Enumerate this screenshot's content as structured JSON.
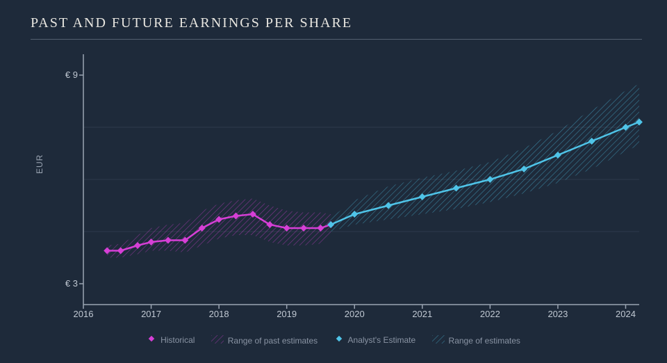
{
  "title": "PAST AND FUTURE EARNINGS PER SHARE",
  "ylabel": "EUR",
  "chart": {
    "type": "line-band",
    "background_color": "#1e2a3a",
    "grid_color": "#2f3b4c",
    "axis_color": "#9aa4b2",
    "title_color": "#e8e6e0",
    "tick_color": "#c0c8d2",
    "title_fontsize": 20,
    "tick_fontsize": 13,
    "ylabel_fontsize": 12,
    "xlim": [
      2016,
      2024.2
    ],
    "ylim": [
      2.4,
      9.6
    ],
    "xticks": [
      2016,
      2017,
      2018,
      2019,
      2020,
      2021,
      2022,
      2023,
      2024
    ],
    "yticks": [
      3,
      9
    ],
    "ytick_labels": [
      "€ 3",
      "€ 9"
    ],
    "line_width": 2.5,
    "marker_size": 5,
    "historical": {
      "color": "#d63fd6",
      "band_fill": "#d63fd6",
      "band_opacity": 0.25,
      "x": [
        2016.35,
        2016.55,
        2016.8,
        2017.0,
        2017.25,
        2017.5,
        2017.75,
        2018.0,
        2018.25,
        2018.5,
        2018.75,
        2019.0,
        2019.25,
        2019.5,
        2019.65
      ],
      "y": [
        3.95,
        3.95,
        4.1,
        4.2,
        4.25,
        4.25,
        4.6,
        4.85,
        4.95,
        5.0,
        4.7,
        4.6,
        4.6,
        4.6,
        4.7
      ],
      "ylo": [
        3.75,
        3.75,
        3.85,
        3.95,
        3.95,
        3.9,
        4.1,
        4.3,
        4.4,
        4.4,
        4.2,
        4.1,
        4.1,
        4.15,
        4.4
      ],
      "yhi": [
        4.1,
        4.15,
        4.4,
        4.6,
        4.7,
        4.75,
        5.1,
        5.3,
        5.4,
        5.45,
        5.25,
        5.1,
        5.05,
        5.05,
        5.0
      ]
    },
    "estimate": {
      "color": "#4fc4e8",
      "band_fill": "#4fc4e8",
      "band_opacity": 0.25,
      "x": [
        2019.65,
        2020.0,
        2020.5,
        2021.0,
        2021.5,
        2022.0,
        2022.5,
        2023.0,
        2023.5,
        2024.0,
        2024.2
      ],
      "y": [
        4.7,
        5.0,
        5.25,
        5.5,
        5.75,
        6.0,
        6.3,
        6.7,
        7.1,
        7.5,
        7.65
      ],
      "ylo": [
        4.5,
        4.7,
        4.85,
        5.0,
        5.15,
        5.35,
        5.6,
        5.9,
        6.3,
        6.8,
        7.0
      ],
      "yhi": [
        4.9,
        5.4,
        5.8,
        6.05,
        6.25,
        6.5,
        6.9,
        7.4,
        8.0,
        8.55,
        8.75
      ]
    }
  },
  "legend": {
    "historical": "Historical",
    "range_past": "Range of past estimates",
    "estimate": "Analyst's Estimate",
    "range_est": "Range of estimates"
  }
}
